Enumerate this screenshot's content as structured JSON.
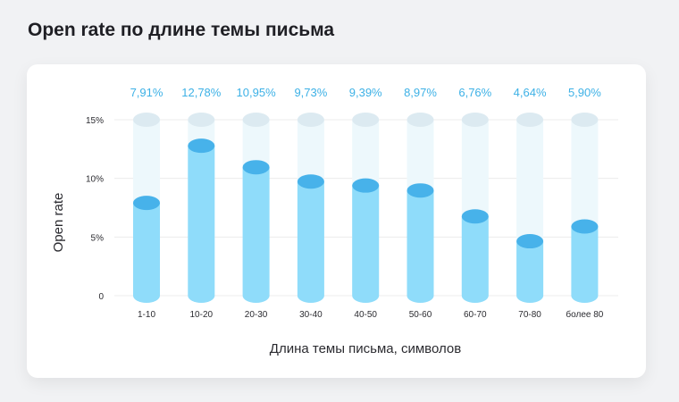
{
  "title": "Open rate по длине темы письма",
  "chart_data": {
    "type": "bar",
    "categories": [
      "1-10",
      "10-20",
      "20-30",
      "30-40",
      "40-50",
      "50-60",
      "60-70",
      "70-80",
      "более 80"
    ],
    "values": [
      7.91,
      12.78,
      10.95,
      9.73,
      9.39,
      8.97,
      6.76,
      4.64,
      5.9
    ],
    "value_labels": [
      "7,91%",
      "12,78%",
      "10,95%",
      "9,73%",
      "9,39%",
      "8,97%",
      "6,76%",
      "4,64%",
      "5,90%"
    ],
    "ylim": [
      0,
      15
    ],
    "y_ticks": [
      0,
      5,
      10,
      15
    ],
    "y_tick_labels": [
      "0",
      "5%",
      "10%",
      "15%"
    ],
    "xlabel": "Длина темы письма, символов",
    "ylabel": "Open rate",
    "grid": true,
    "colors": {
      "bar": "#8fdcfa",
      "bar_cap": "#47b2ea",
      "track": "#edf8fc",
      "track_cap": "#dceaf1",
      "value_label": "#3db1e6",
      "grid": "#ececec"
    }
  }
}
